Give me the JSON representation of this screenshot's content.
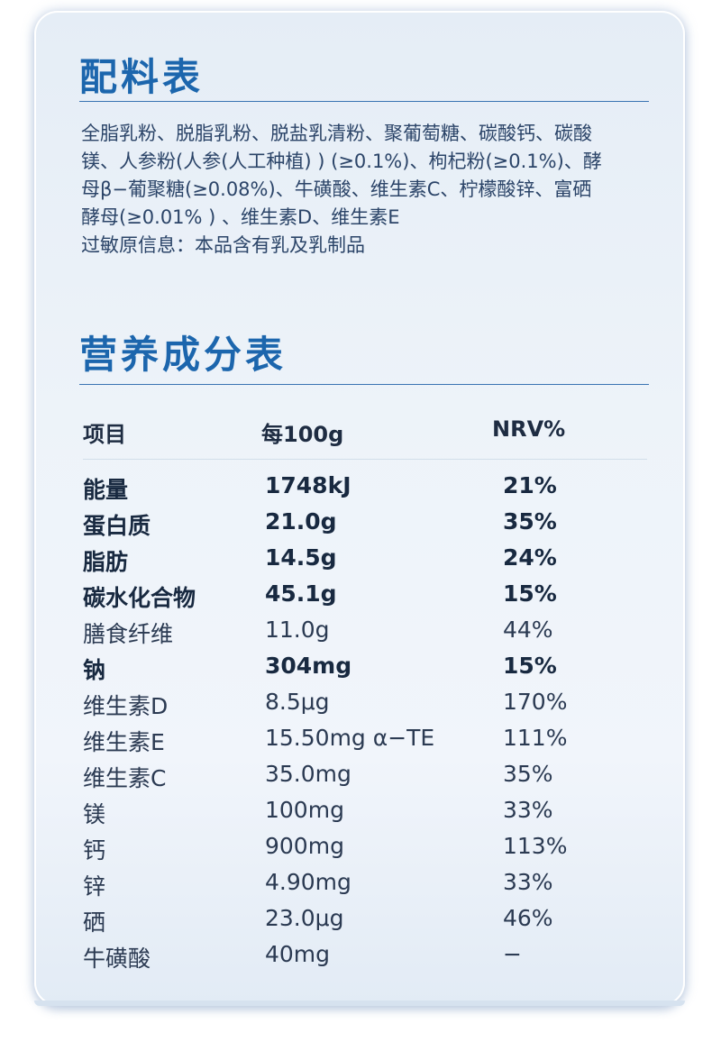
{
  "ingredients": {
    "title": "配料表",
    "lines": [
      "全脂乳粉、脱脂乳粉、脱盐乳清粉、聚葡萄糖、碳酸钙、碳酸",
      "镁、人参粉(人参(人工种植) ) (≥0.1%)、枸杞粉(≥0.1%)、酵",
      "母β−葡聚糖(≥0.08%)、牛磺酸、维生素C、柠檬酸锌、富硒",
      "酵母(≥0.01% ) 、维生素D、维生素E"
    ],
    "allergen": "过敏原信息：本品含有乳及乳制品"
  },
  "nutrition": {
    "title": "营养成分表",
    "headers": {
      "item": "项目",
      "per100g": "每100g",
      "nrv": "NRV%"
    },
    "rows": [
      {
        "item": "能量",
        "amount": "1748kJ",
        "nrv": "21%"
      },
      {
        "item": "蛋白质",
        "amount": "21.0g",
        "nrv": "35%"
      },
      {
        "item": "脂肪",
        "amount": "14.5g",
        "nrv": "24%"
      },
      {
        "item": "碳水化合物",
        "amount": "45.1g",
        "nrv": "15%"
      },
      {
        "item": "膳食纤维",
        "amount": "11.0g",
        "nrv": "44%"
      },
      {
        "item": "钠",
        "amount": "304mg",
        "nrv": "15%"
      },
      {
        "item": "维生素D",
        "amount": "8.5μg",
        "nrv": "170%"
      },
      {
        "item": "维生素E",
        "amount": "15.50mg α−TE",
        "nrv": "111%"
      },
      {
        "item": "维生素C",
        "amount": "35.0mg",
        "nrv": "35%"
      },
      {
        "item": "镁",
        "amount": "100mg",
        "nrv": "33%"
      },
      {
        "item": "钙",
        "amount": "900mg",
        "nrv": "113%"
      },
      {
        "item": "锌",
        "amount": "4.90mg",
        "nrv": "33%"
      },
      {
        "item": "硒",
        "amount": "23.0μg",
        "nrv": "46%"
      },
      {
        "item": "牛磺酸",
        "amount": "40mg",
        "nrv": "−"
      }
    ]
  },
  "colors": {
    "title": "#1c66ad",
    "rule": "#3a74b3",
    "text": "#2b4468"
  }
}
